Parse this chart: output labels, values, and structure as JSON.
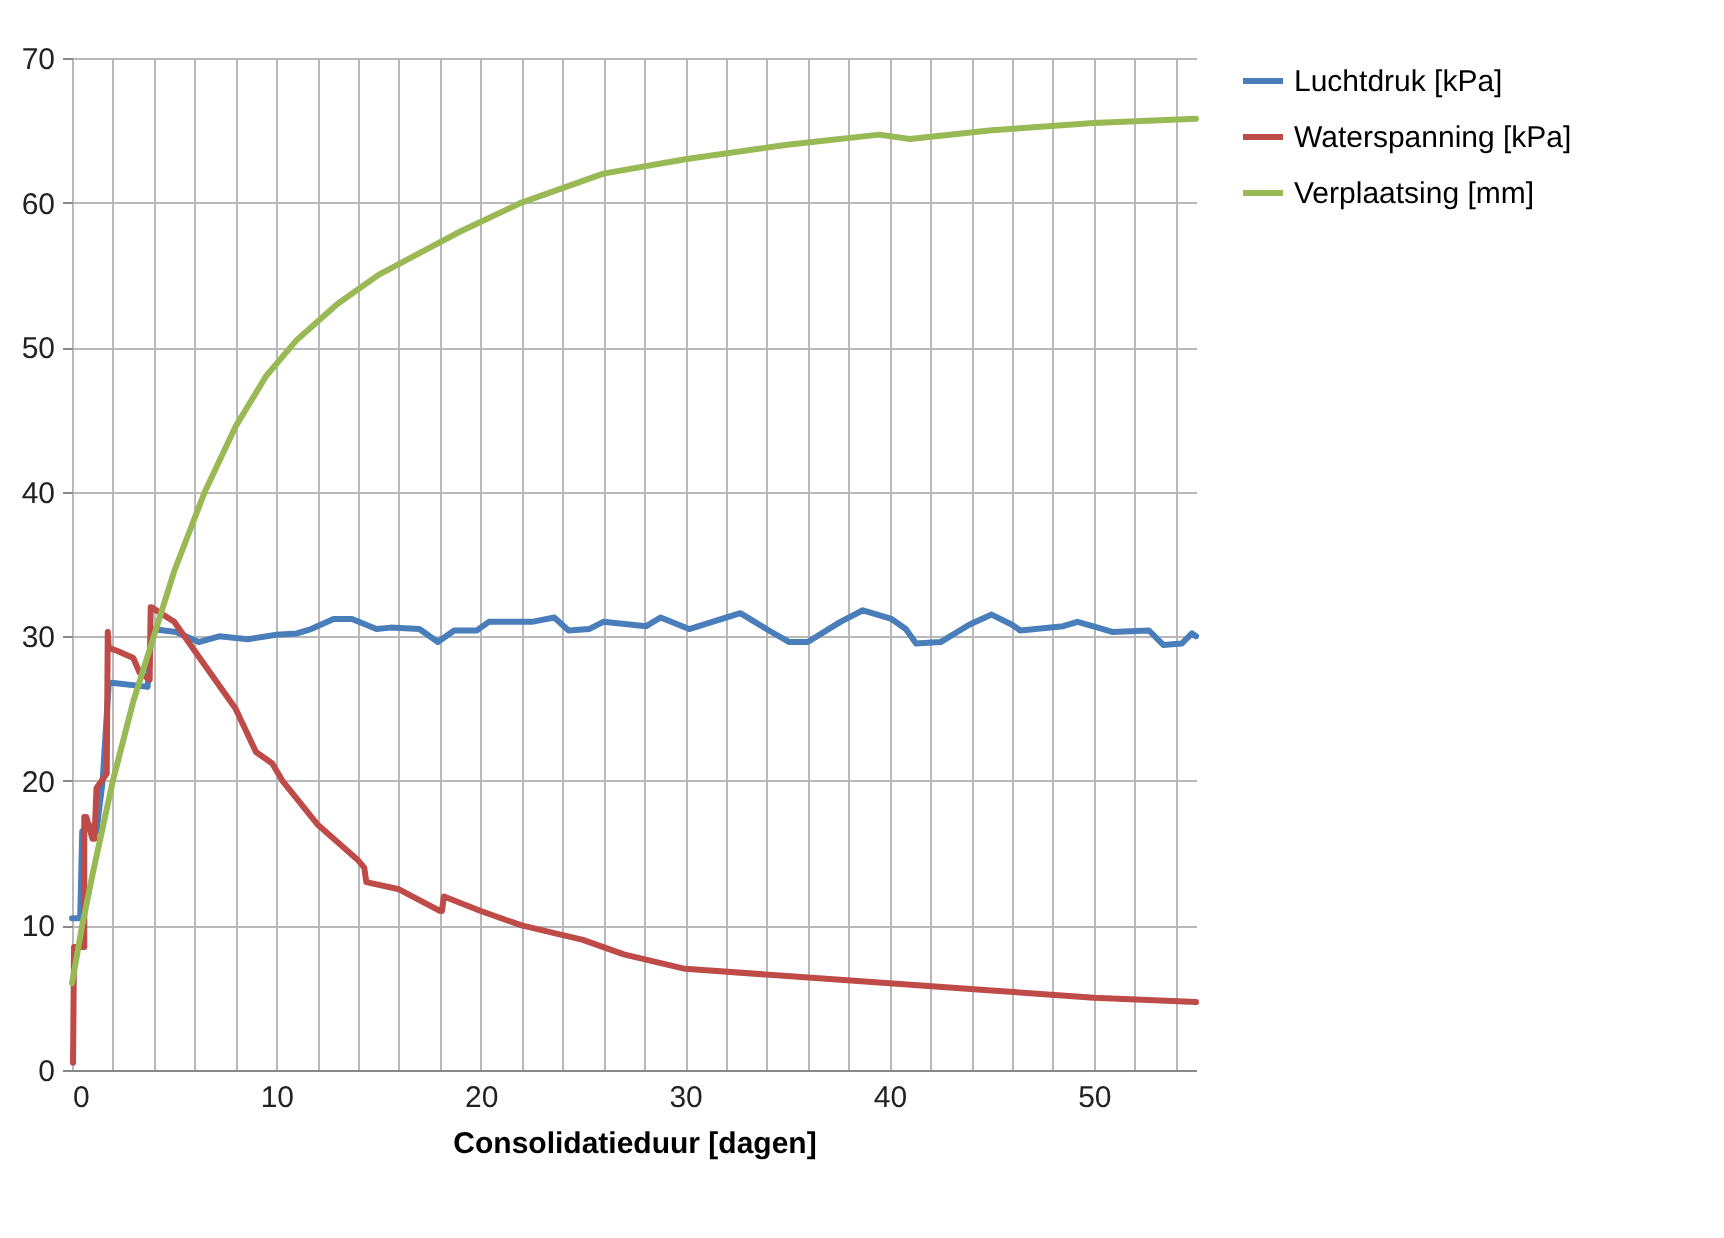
{
  "chart_data": {
    "type": "line",
    "xlabel": "Consolidatieduur [dagen]",
    "xlim": [
      0,
      55
    ],
    "ylim": [
      0,
      70
    ],
    "xticks": [
      0,
      {
        "value": 2,
        "label": null
      },
      {
        "value": 4,
        "label": null
      },
      {
        "value": 6,
        "label": null
      },
      {
        "value": 8,
        "label": null
      },
      10,
      {
        "value": 12,
        "label": null
      },
      {
        "value": 14,
        "label": null
      },
      {
        "value": 16,
        "label": null
      },
      {
        "value": 18,
        "label": null
      },
      20,
      {
        "value": 22,
        "label": null
      },
      {
        "value": 24,
        "label": null
      },
      {
        "value": 26,
        "label": null
      },
      {
        "value": 28,
        "label": null
      },
      30,
      {
        "value": 32,
        "label": null
      },
      {
        "value": 34,
        "label": null
      },
      {
        "value": 36,
        "label": null
      },
      {
        "value": 38,
        "label": null
      },
      40,
      {
        "value": 42,
        "label": null
      },
      {
        "value": 44,
        "label": null
      },
      {
        "value": 46,
        "label": null
      },
      {
        "value": 48,
        "label": null
      },
      50,
      {
        "value": 52,
        "label": null
      },
      {
        "value": 54,
        "label": null
      }
    ],
    "yticks": [
      0,
      10,
      20,
      30,
      40,
      50,
      60,
      70
    ],
    "grid": true,
    "legend": "right",
    "marker": "none",
    "line_style": "solid",
    "series": [
      {
        "name": "Luchtdruk [kPa]",
        "color": "#4a7ebb",
        "x": [
          0,
          0.4,
          0.5,
          0.8,
          1.2,
          1.5,
          1.8,
          2.5,
          3.7,
          3.9,
          5.1,
          6.2,
          7.2,
          8.6,
          10,
          11,
          11.7,
          12.8,
          13.7,
          14.9,
          15.6,
          17,
          17.9,
          18.7,
          19.8,
          20.4,
          22.5,
          23.6,
          24.3,
          25.3,
          26,
          28.1,
          28.8,
          30.2,
          32.7,
          34.1,
          35.1,
          36,
          37.6,
          38.7,
          40.1,
          40.8,
          41.3,
          42.5,
          43.9,
          45,
          46,
          46.4,
          48.5,
          49.2,
          50.2,
          50.9,
          52.7,
          53.4,
          54.3,
          54.8,
          55
        ],
        "values": [
          10.5,
          10.5,
          16.5,
          17,
          16.5,
          20,
          26.8,
          26.7,
          26.5,
          30.5,
          30.3,
          29.6,
          30,
          29.8,
          30.1,
          30.2,
          30.5,
          31.2,
          31.2,
          30.5,
          30.6,
          30.5,
          29.6,
          30.4,
          30.4,
          31,
          31,
          31.3,
          30.4,
          30.5,
          31,
          30.7,
          31.3,
          30.5,
          31.6,
          30.4,
          29.6,
          29.6,
          31,
          31.8,
          31.2,
          30.5,
          29.5,
          29.6,
          30.8,
          31.5,
          30.8,
          30.4,
          30.7,
          31,
          30.6,
          30.3,
          30.4,
          29.4,
          29.5,
          30.2,
          30
        ]
      },
      {
        "name": "Waterspanning [kPa]",
        "color": "#be4b48",
        "x": [
          0.05,
          0.1,
          0.6,
          0.6,
          0.7,
          1,
          1.1,
          1.2,
          1.7,
          1.75,
          1.8,
          2.2,
          3,
          3.3,
          3.8,
          3.85,
          3.9,
          5,
          6.5,
          8,
          9,
          9.8,
          10.3,
          12,
          14,
          14.3,
          14.4,
          16,
          18,
          18.1,
          18.2,
          20,
          22,
          25,
          27,
          30,
          35,
          40,
          45,
          50,
          55
        ],
        "values": [
          0.5,
          8.5,
          8.5,
          17.5,
          17.5,
          16,
          16,
          19.5,
          20.5,
          30.3,
          29.2,
          29,
          28.5,
          27.5,
          27,
          32,
          32,
          31,
          28,
          25,
          22,
          21.2,
          20,
          17,
          14.5,
          14,
          13,
          12.5,
          11,
          11,
          12,
          11,
          10,
          9,
          8,
          7,
          6.5,
          6,
          5.5,
          5,
          4.7
        ]
      },
      {
        "name": "Verplaatsing [mm]",
        "color": "#98b954",
        "x": [
          0,
          0.5,
          1,
          2,
          3,
          4,
          5,
          6.5,
          8,
          9.5,
          11,
          13,
          15,
          17,
          19,
          22,
          26,
          30,
          35,
          39.5,
          41,
          45,
          50,
          55
        ],
        "values": [
          6,
          10,
          13.5,
          20,
          25.5,
          30,
          34.5,
          40,
          44.5,
          48,
          50.5,
          53,
          55,
          56.5,
          58,
          60,
          62,
          63,
          64,
          64.7,
          64.4,
          65,
          65.5,
          65.8
        ]
      }
    ]
  }
}
